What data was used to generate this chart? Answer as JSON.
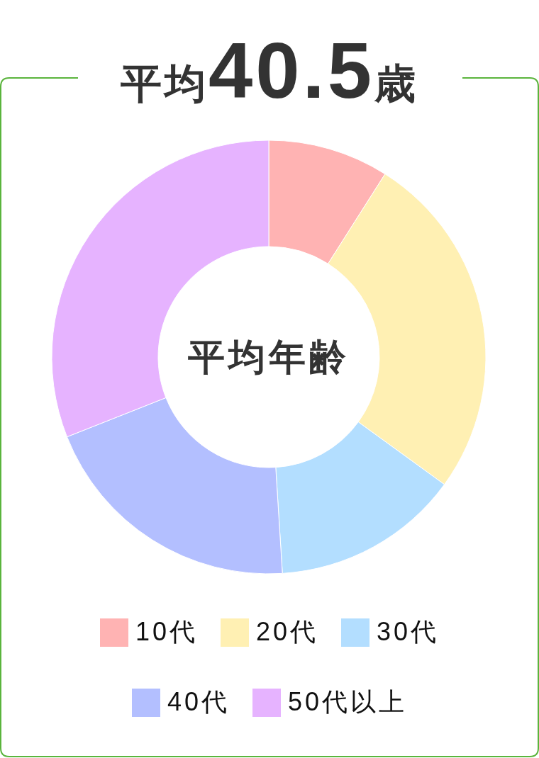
{
  "chart_data": {
    "type": "donut",
    "title": "平均40.5歳",
    "categories": [
      "10代",
      "20代",
      "30代",
      "40代",
      "50代以上"
    ],
    "values": [
      9,
      26,
      14,
      20,
      31
    ],
    "colors": [
      "#ffb3b3",
      "#fff0b3",
      "#b3deff",
      "#b3bfff",
      "#e6b3ff"
    ],
    "legend": "bottom",
    "annotations": [
      "平均年齢"
    ]
  }
}
